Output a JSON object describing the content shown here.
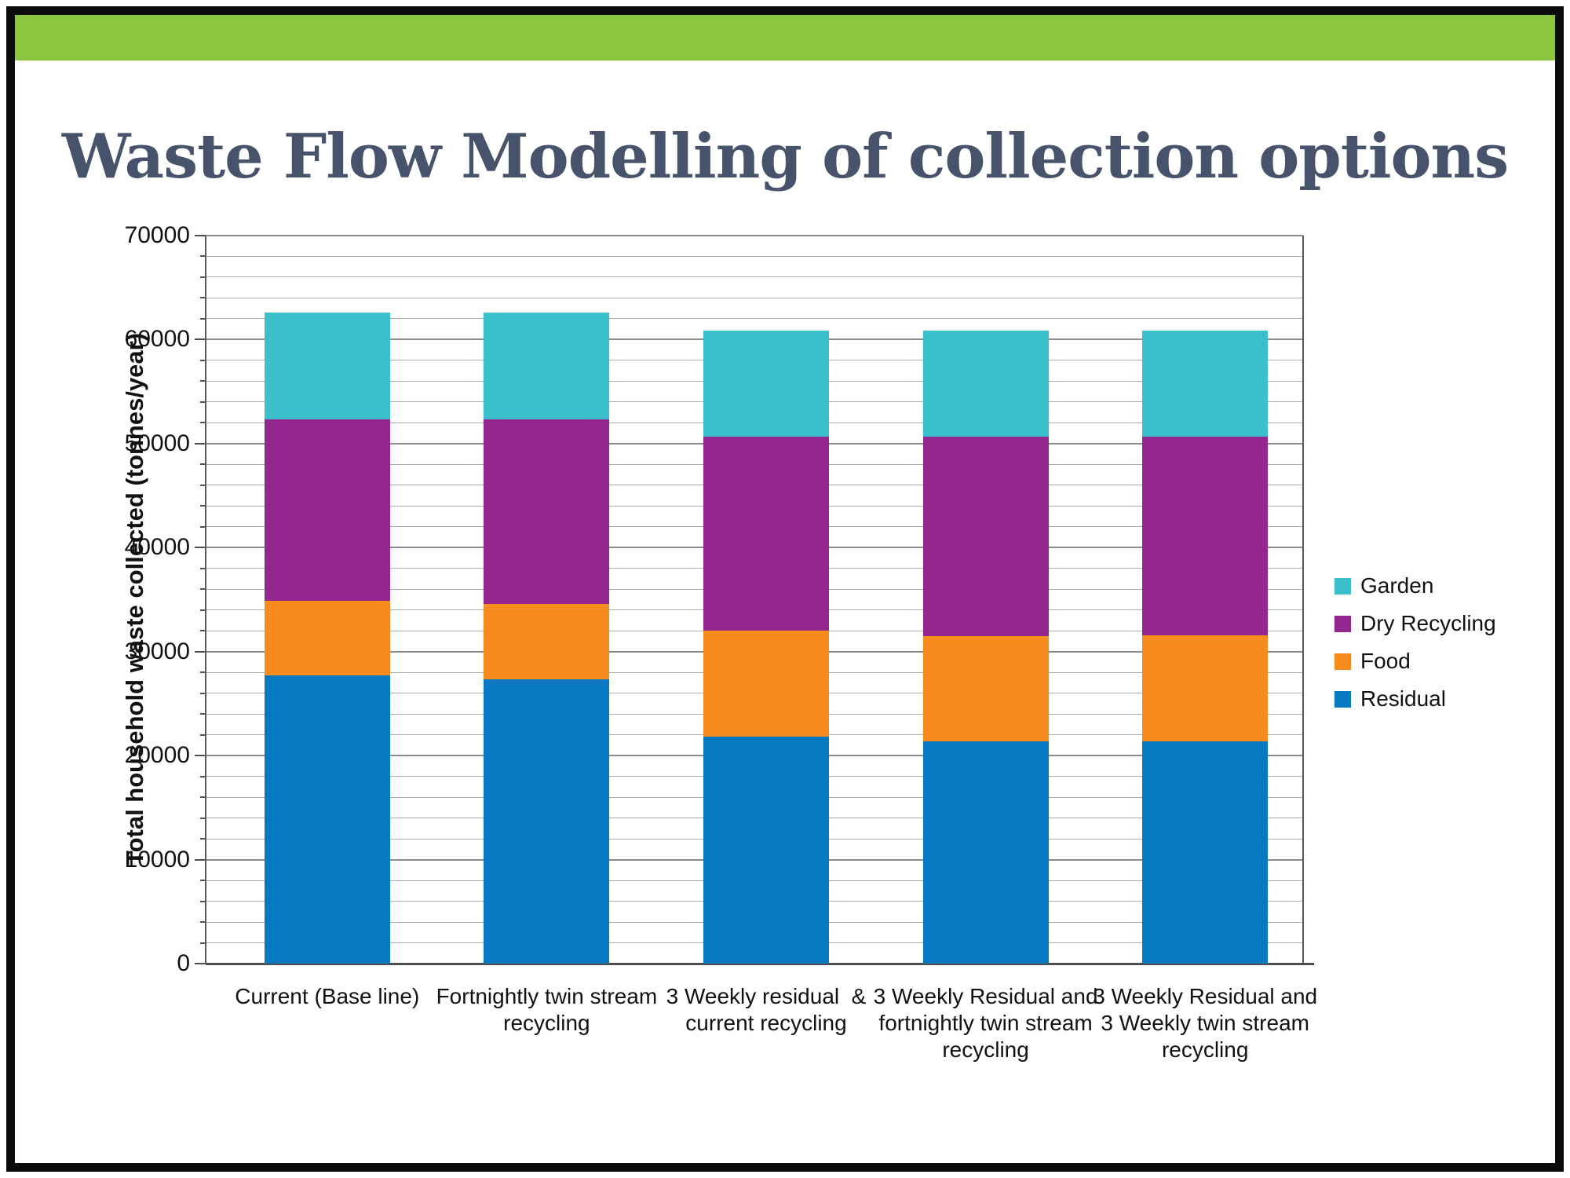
{
  "page": {
    "title": "Waste Flow Modelling of collection options",
    "title_color": "#46536B",
    "header_bar_color": "#8CC63F",
    "frame_color": "#0B0B0B",
    "background_color": "#FFFFFF"
  },
  "chart_data": {
    "type": "bar",
    "stacked": true,
    "ylabel": "Total household waste collected (tonnes/year)",
    "xlabel": "",
    "ylim": [
      0,
      70000
    ],
    "ytick_step": 10000,
    "minor_grid_step": 2000,
    "ytick_labels": [
      "0",
      "10000",
      "20000",
      "30000",
      "40000",
      "50000",
      "60000",
      "70000"
    ],
    "grid": true,
    "legend_position": "right",
    "categories": [
      "Current (Base line)",
      "Fortnightly twin stream recycling",
      "3 Weekly residual  & current recycling",
      "3 Weekly Residual and fortnightly twin stream recycling",
      "3 Weekly Residual and 3 Weekly twin stream recycling"
    ],
    "categories_wrapped": [
      [
        "Current (Base line)"
      ],
      [
        "Fortnightly twin stream",
        "recycling"
      ],
      [
        "3 Weekly residual  &",
        "current recycling"
      ],
      [
        "3 Weekly Residual and",
        "fortnightly twin stream",
        "recycling"
      ],
      [
        "3 Weekly Residual and",
        "3 Weekly twin stream",
        "recycling"
      ]
    ],
    "series": [
      {
        "name": "Residual",
        "color": "#0878C2",
        "values": [
          27700,
          27300,
          21800,
          21400,
          21400
        ]
      },
      {
        "name": "Food",
        "color": "#F68C1E",
        "values": [
          7200,
          7300,
          10200,
          10100,
          10200
        ]
      },
      {
        "name": "Dry Recycling",
        "color": "#93278F",
        "values": [
          17400,
          17700,
          18700,
          19200,
          19100
        ]
      },
      {
        "name": "Garden",
        "color": "#3ABFCB",
        "values": [
          10300,
          10300,
          10200,
          10200,
          10200
        ]
      }
    ],
    "stack_totals": [
      62600,
      62600,
      60900,
      60900,
      60900
    ],
    "legend_entries": [
      "Garden",
      "Dry Recycling",
      "Food",
      "Residual"
    ],
    "colors": {
      "axis": "#4D4D4D",
      "major_grid": "#8C8C8C",
      "minor_grid": "#ABABAB",
      "plot_border": "#595959"
    }
  }
}
